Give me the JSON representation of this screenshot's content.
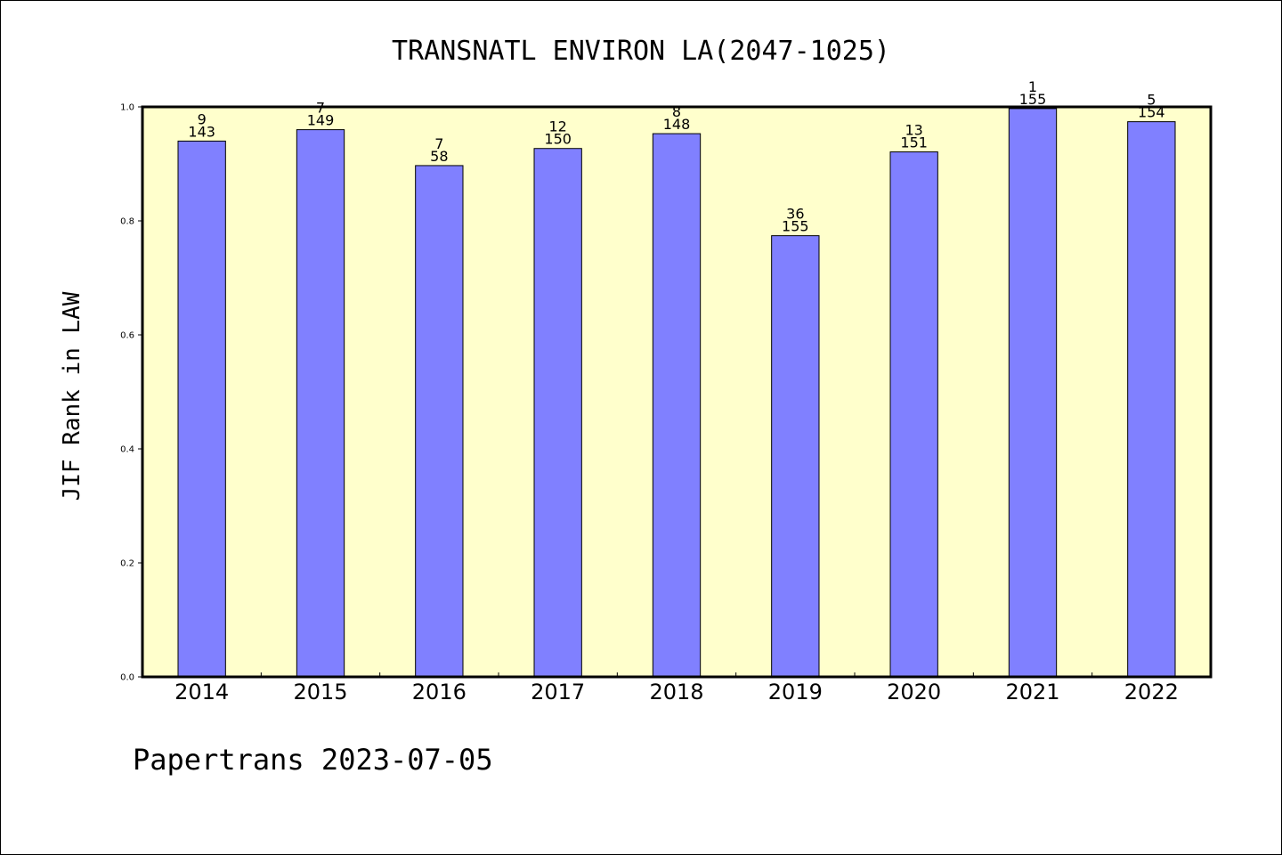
{
  "chart_data": {
    "type": "bar",
    "title": "TRANSNATL ENVIRON LA(2047-1025)",
    "xlabel": "",
    "ylabel": "JIF Rank in LAW",
    "ylim": [
      0,
      1.0
    ],
    "yticks": [
      "0.0",
      "0.2",
      "0.4",
      "0.6",
      "0.8",
      "1.0"
    ],
    "categories": [
      "2014",
      "2015",
      "2016",
      "2017",
      "2018",
      "2019",
      "2020",
      "2021",
      "2022"
    ],
    "values": [
      0.94,
      0.96,
      0.897,
      0.927,
      0.953,
      0.774,
      0.921,
      0.997,
      0.974
    ],
    "rank": [
      "9",
      "7",
      "7",
      "12",
      "8",
      "36",
      "13",
      "1",
      "5"
    ],
    "total": [
      "143",
      "149",
      "58",
      "150",
      "148",
      "155",
      "151",
      "155",
      "154"
    ],
    "colors": {
      "bar": "#8080ff",
      "plot_bg": "#ffffcc",
      "axis": "#000000"
    },
    "grid": false
  },
  "footer": {
    "text": "Papertrans 2023-07-05"
  }
}
